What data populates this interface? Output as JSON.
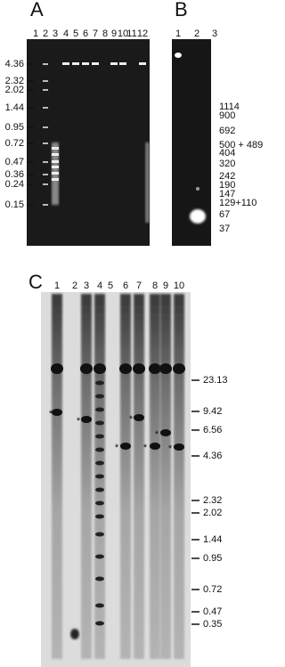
{
  "panels": [
    {
      "label": "A",
      "lanes": [
        "1",
        "2",
        "3",
        "4",
        "5",
        "6",
        "7",
        "8",
        "9",
        "10",
        "11",
        "12"
      ],
      "markers": [
        "4.36",
        "2.32",
        "2.02",
        "1.44",
        "0.95",
        "0.72",
        "0.47",
        "0.36",
        "0.24",
        "0.15"
      ]
    },
    {
      "label": "B",
      "lanes": [
        "1",
        "2",
        "3"
      ],
      "markers": [
        "1114",
        "900",
        "692",
        "500 + 489",
        "404",
        "320",
        "242",
        "190",
        "147",
        "129+110",
        "67",
        "37"
      ]
    },
    {
      "label": "C",
      "lanes": [
        "1",
        "2",
        "3",
        "4",
        "5",
        "6",
        "7",
        "8",
        "9",
        "10"
      ],
      "markers": [
        "23.13",
        "9.42",
        "6.56",
        "4.36",
        "2.32",
        "2.02",
        "1.44",
        "0.95",
        "0.72",
        "0.47",
        "0.35"
      ],
      "asterisk": "*"
    }
  ]
}
